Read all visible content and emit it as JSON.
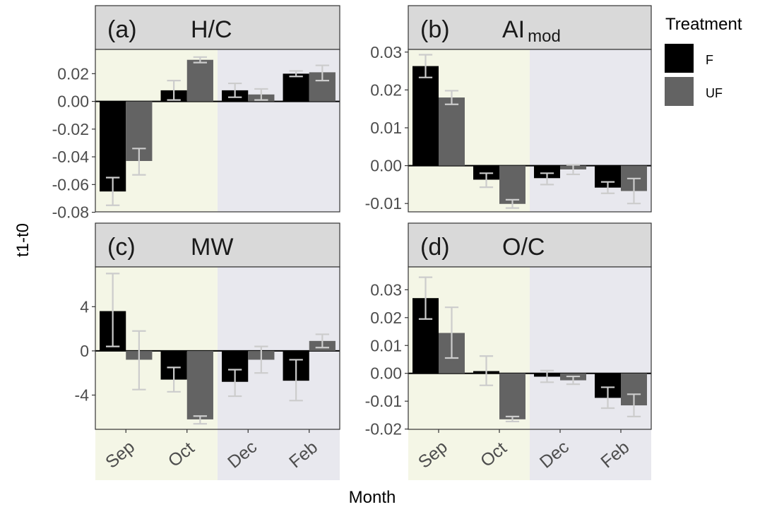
{
  "figure": {
    "ylabel": "t1-t0",
    "xlabel": "Month",
    "months": [
      "Sep",
      "Oct",
      "Dec",
      "Feb"
    ],
    "legend": {
      "title": "Treatment",
      "items": [
        {
          "label": "F",
          "color": "#000000"
        },
        {
          "label": "UF",
          "color": "#636363"
        }
      ]
    },
    "colors": {
      "strip": "#d9d9d9",
      "panel_warm": "#f4f6e6",
      "panel_cool": "#e8e8ee",
      "error_bar": "#cccccc",
      "tick_text": "#4d4d4d"
    }
  },
  "chart_data": [
    {
      "type": "bar",
      "panel": "(a)",
      "title": "H/C",
      "categories": [
        "Sep",
        "Oct",
        "Dec",
        "Feb"
      ],
      "series": [
        {
          "name": "F",
          "values": [
            -0.065,
            0.008,
            0.008,
            0.02
          ],
          "err_low": [
            -0.075,
            0.001,
            0.003,
            0.018
          ],
          "err_high": [
            -0.055,
            0.015,
            0.013,
            0.022
          ]
        },
        {
          "name": "UF",
          "values": [
            -0.043,
            0.03,
            0.005,
            0.021
          ],
          "err_low": [
            -0.053,
            0.028,
            0.001,
            0.015
          ],
          "err_high": [
            -0.034,
            0.032,
            0.009,
            0.026
          ]
        }
      ],
      "yticks": [
        -0.08,
        -0.06,
        -0.04,
        -0.02,
        0.0,
        0.02
      ],
      "ytick_labels": [
        "-0.08",
        "-0.06",
        "-0.04",
        "-0.02",
        "0.00",
        "0.02"
      ],
      "ylim": [
        -0.0797,
        0.0375
      ]
    },
    {
      "type": "bar",
      "panel": "(b)",
      "title": "AI",
      "title_subscript": "mod",
      "categories": [
        "Sep",
        "Oct",
        "Dec",
        "Feb"
      ],
      "series": [
        {
          "name": "F",
          "values": [
            0.0263,
            -0.0037,
            -0.0033,
            -0.0058
          ],
          "err_low": [
            0.0233,
            -0.0057,
            -0.005,
            -0.0073
          ],
          "err_high": [
            0.0293,
            -0.002,
            -0.002,
            -0.0043
          ]
        },
        {
          "name": "UF",
          "values": [
            0.018,
            -0.0101,
            -0.001,
            -0.0067
          ],
          "err_low": [
            0.0162,
            -0.0112,
            -0.0023,
            -0.01
          ],
          "err_high": [
            0.0198,
            -0.009,
            0.0002,
            -0.0034
          ]
        }
      ],
      "yticks": [
        -0.01,
        0.0,
        0.01,
        0.02,
        0.03
      ],
      "ytick_labels": [
        "-0.01",
        "0.00",
        "0.01",
        "0.02",
        "0.03"
      ],
      "ylim": [
        -0.0122,
        0.0307
      ]
    },
    {
      "type": "bar",
      "panel": "(c)",
      "title": "MW",
      "categories": [
        "Sep",
        "Oct",
        "Dec",
        "Feb"
      ],
      "series": [
        {
          "name": "F",
          "values": [
            3.6,
            -2.6,
            -2.8,
            -2.7
          ],
          "err_low": [
            0.4,
            -3.7,
            -4.1,
            -4.5
          ],
          "err_high": [
            7.0,
            -1.5,
            -1.7,
            -0.8
          ]
        },
        {
          "name": "UF",
          "values": [
            -0.8,
            -6.2,
            -0.8,
            0.9
          ],
          "err_low": [
            -3.5,
            -6.6,
            -2.0,
            0.3
          ],
          "err_high": [
            1.8,
            -5.9,
            0.4,
            1.5
          ]
        }
      ],
      "yticks": [
        -4,
        0,
        4
      ],
      "ytick_labels": [
        "-4",
        "0",
        "4"
      ],
      "ylim": [
        -7.1,
        7.6
      ]
    },
    {
      "type": "bar",
      "panel": "(d)",
      "title": "O/C",
      "categories": [
        "Sep",
        "Oct",
        "Dec",
        "Feb"
      ],
      "series": [
        {
          "name": "F",
          "values": [
            0.027,
            0.0008,
            -0.0012,
            -0.0088
          ],
          "err_low": [
            0.0195,
            -0.0043,
            -0.0032,
            -0.0125
          ],
          "err_high": [
            0.0345,
            0.0062,
            0.001,
            -0.005
          ]
        },
        {
          "name": "UF",
          "values": [
            0.0145,
            -0.0165,
            -0.0025,
            -0.0115
          ],
          "err_low": [
            0.0055,
            -0.0173,
            -0.0039,
            -0.0155
          ],
          "err_high": [
            0.0237,
            -0.0155,
            -0.0011,
            -0.0075
          ]
        }
      ],
      "yticks": [
        -0.02,
        -0.01,
        0.0,
        0.01,
        0.02,
        0.03
      ],
      "ytick_labels": [
        "-0.02",
        "-0.01",
        "0.00",
        "0.01",
        "0.02",
        "0.03"
      ],
      "ylim": [
        -0.0201,
        0.0382
      ]
    }
  ]
}
